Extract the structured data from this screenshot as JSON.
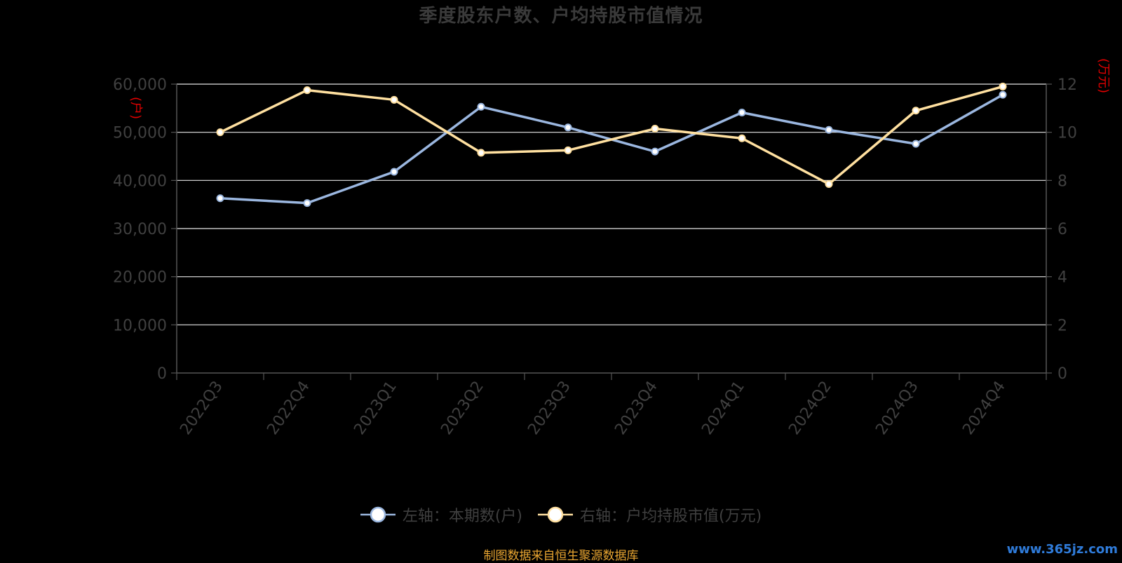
{
  "title": "季度股东户数、户均持股市值情况",
  "source_note": "制图数据来自恒生聚源数据库",
  "watermark": "www.365jz.com",
  "colors": {
    "background": "#000000",
    "holders_line": "#9bb7e0",
    "value_line": "#ffe0a0",
    "grid": "#e6e6e6",
    "axis_text": "#404040",
    "unit_text": "#e00000",
    "source_text": "#e8a531"
  },
  "legend": [
    {
      "label": "左轴：本期数(户)",
      "series": 0
    },
    {
      "label": "右轴：户均持股市值(万元)",
      "series": 1
    }
  ],
  "chart_data": {
    "type": "line",
    "title": "季度股东户数、户均持股市值情况",
    "categories": [
      "2022Q3",
      "2022Q4",
      "2023Q1",
      "2023Q2",
      "2023Q3",
      "2023Q4",
      "2024Q1",
      "2024Q2",
      "2024Q3",
      "2024Q4"
    ],
    "left_axis": {
      "unit": "(户)",
      "ylim": [
        0,
        60000
      ],
      "ticks": [
        "0",
        "10,000",
        "20,000",
        "30,000",
        "40,000",
        "50,000",
        "60,000"
      ],
      "tick_values": [
        0,
        10000,
        20000,
        30000,
        40000,
        50000,
        60000
      ]
    },
    "right_axis": {
      "unit": "(万元)",
      "ylim": [
        0,
        12
      ],
      "ticks": [
        "0",
        "2",
        "4",
        "6",
        "8",
        "10",
        "12"
      ],
      "tick_values": [
        0,
        2,
        4,
        6,
        8,
        10,
        12
      ]
    },
    "grid": true,
    "legend_position": "bottom",
    "series": [
      {
        "name": "左轴：本期数(户)",
        "axis": "left",
        "values": [
          36300,
          35300,
          41800,
          55300,
          51000,
          46000,
          54100,
          50500,
          47600,
          57800
        ]
      },
      {
        "name": "右轴：户均持股市值(万元)",
        "axis": "right",
        "values": [
          10.0,
          11.75,
          11.35,
          9.15,
          9.25,
          10.15,
          9.75,
          7.85,
          10.9,
          11.9
        ]
      }
    ]
  }
}
